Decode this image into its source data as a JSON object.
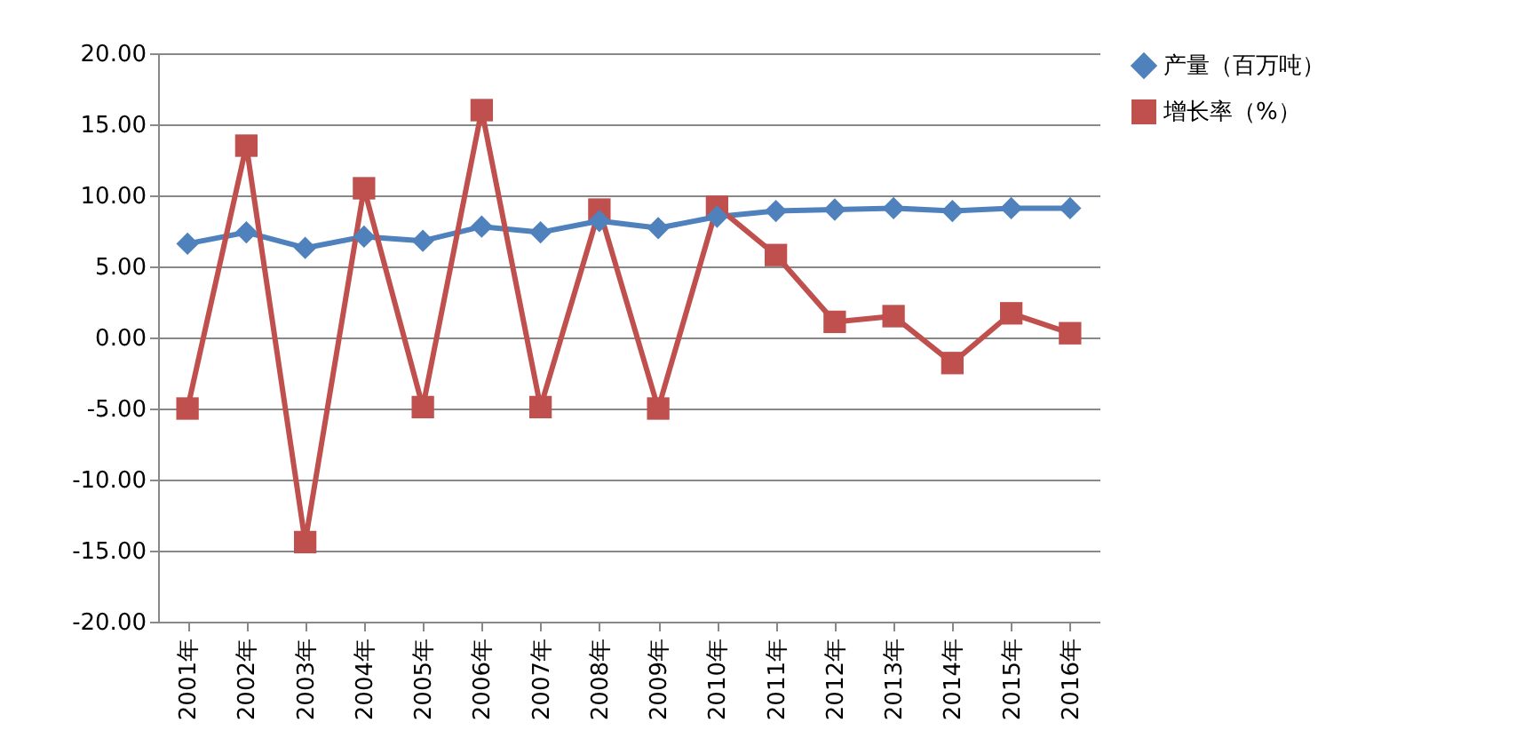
{
  "chart_data": {
    "type": "line",
    "categories": [
      "2001年",
      "2002年",
      "2003年",
      "2004年",
      "2005年",
      "2006年",
      "2007年",
      "2008年",
      "2009年",
      "2010年",
      "2011年",
      "2012年",
      "2013年",
      "2014年",
      "2015年",
      "2016年"
    ],
    "series": [
      {
        "name": "产量（百万吨）",
        "color": "#4f81bd",
        "marker": "diamond",
        "values": [
          6.6,
          7.4,
          6.3,
          7.1,
          6.8,
          7.8,
          7.4,
          8.2,
          7.7,
          8.5,
          8.9,
          9.0,
          9.1,
          8.9,
          9.1,
          9.1
        ]
      },
      {
        "name": "增长率（%）",
        "color": "#c0504d",
        "marker": "square",
        "values": [
          -5.0,
          13.5,
          -14.4,
          10.5,
          -4.9,
          16.0,
          -4.9,
          9.0,
          -5.0,
          9.2,
          5.8,
          1.1,
          1.5,
          -1.8,
          1.7,
          0.3
        ]
      }
    ],
    "ylim": [
      -20,
      20
    ],
    "yticks": [
      {
        "value": -20,
        "label": "-20.00"
      },
      {
        "value": -15,
        "label": "-15.00"
      },
      {
        "value": -10,
        "label": "-10.00"
      },
      {
        "value": -5,
        "label": "-5.00"
      },
      {
        "value": 0,
        "label": "0.00"
      },
      {
        "value": 5,
        "label": "5.00"
      },
      {
        "value": 10,
        "label": "10.00"
      },
      {
        "value": 15,
        "label": "15.00"
      },
      {
        "value": 20,
        "label": "20.00"
      }
    ],
    "grid": "y",
    "legend": "right",
    "line_style": "solid"
  }
}
